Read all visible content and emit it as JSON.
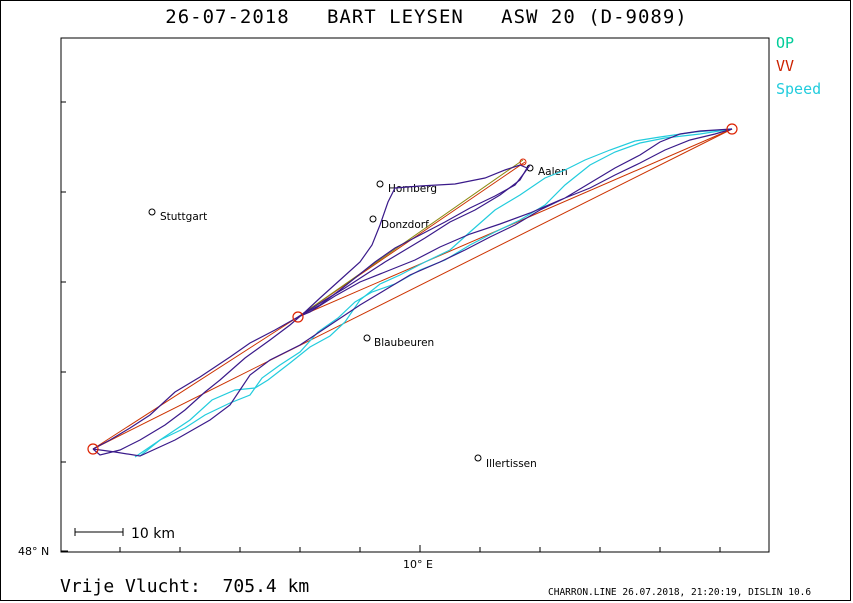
{
  "title": "26-07-2018   BART LEYSEN   ASW 20 (D-9089)",
  "legend": {
    "op": {
      "label": "OP",
      "color": "#00cc99"
    },
    "vv": {
      "label": "VV",
      "color": "#cc2200"
    },
    "speed": {
      "label": "Speed",
      "color": "#22ccdd"
    }
  },
  "colors": {
    "track": "#3a1a8a",
    "speed_track": "#22ccdd",
    "vv_line": "#cc3300",
    "op_line": "#8a8a10"
  },
  "axes": {
    "lat_label": "48° N",
    "lon_label": "10° E"
  },
  "scale_bar": {
    "label": "10  km"
  },
  "towns": [
    {
      "name": "Stuttgart"
    },
    {
      "name": "Hornberg"
    },
    {
      "name": "Aalen"
    },
    {
      "name": "Donzdorf"
    },
    {
      "name": "Blaubeuren"
    },
    {
      "name": "Illertissen"
    }
  ],
  "footer": {
    "distance": "Vrije Vlucht:  705.4 km",
    "software": "CHARRON.LINE 26.07.2018, 21:20:19, DISLIN 10.6"
  }
}
